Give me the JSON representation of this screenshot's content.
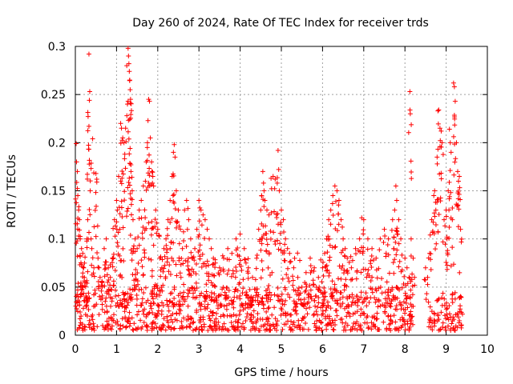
{
  "chart_data": {
    "type": "scatter",
    "title": "Day 260 of 2024, Rate Of TEC Index for receiver trds",
    "xlabel": "GPS time / hours",
    "ylabel": "ROTI / TECUs",
    "xlim": [
      0,
      10
    ],
    "ylim": [
      0,
      0.3
    ],
    "x_ticks": [
      0,
      1,
      2,
      3,
      4,
      5,
      6,
      7,
      8,
      9,
      10
    ],
    "x_tick_labels": [
      "0",
      "1",
      "2",
      "3",
      "4",
      "5",
      "6",
      "7",
      "8",
      "9",
      "10"
    ],
    "y_ticks": [
      0,
      0.05,
      0.1,
      0.15,
      0.2,
      0.25,
      0.3
    ],
    "y_tick_labels": [
      "0",
      "0.05",
      "0.1",
      "0.15",
      "0.2",
      "0.25",
      "0.3"
    ],
    "grid": true,
    "marker": "plus",
    "series": [
      {
        "name": "ROTI",
        "color": "#ff0000",
        "points": [
          [
            0.02,
            0.199
          ],
          [
            0.03,
            0.18
          ],
          [
            0.05,
            0.17
          ],
          [
            0.06,
            0.145
          ],
          [
            0.08,
            0.13
          ],
          [
            0.1,
            0.12
          ],
          [
            0.12,
            0.1
          ],
          [
            0.15,
            0.09
          ],
          [
            0.18,
            0.085
          ],
          [
            0.2,
            0.07
          ],
          [
            0.22,
            0.06
          ],
          [
            0.25,
            0.055
          ],
          [
            0.28,
            0.1
          ],
          [
            0.3,
            0.12
          ],
          [
            0.33,
            0.292
          ],
          [
            0.35,
            0.253
          ],
          [
            0.34,
            0.244
          ],
          [
            0.33,
            0.217
          ],
          [
            0.36,
            0.15
          ],
          [
            0.4,
            0.09
          ],
          [
            0.42,
            0.204
          ],
          [
            0.45,
            0.07
          ],
          [
            0.5,
            0.168
          ],
          [
            0.52,
            0.162
          ],
          [
            0.55,
            0.08
          ],
          [
            0.6,
            0.06
          ],
          [
            0.65,
            0.05
          ],
          [
            0.7,
            0.09
          ],
          [
            0.75,
            0.1
          ],
          [
            0.8,
            0.07
          ],
          [
            0.85,
            0.06
          ],
          [
            0.9,
            0.08
          ],
          [
            0.95,
            0.12
          ],
          [
            1.0,
            0.14
          ],
          [
            1.02,
            0.13
          ],
          [
            1.05,
            0.165
          ],
          [
            1.08,
            0.11
          ],
          [
            1.1,
            0.22
          ],
          [
            1.12,
            0.215
          ],
          [
            1.15,
            0.205
          ],
          [
            1.18,
            0.2
          ],
          [
            1.2,
            0.188
          ],
          [
            1.22,
            0.215
          ],
          [
            1.25,
            0.228
          ],
          [
            1.28,
            0.298
          ],
          [
            1.29,
            0.29
          ],
          [
            1.3,
            0.282
          ],
          [
            1.31,
            0.274
          ],
          [
            1.32,
            0.265
          ],
          [
            1.33,
            0.255
          ],
          [
            1.34,
            0.245
          ],
          [
            1.35,
            0.17
          ],
          [
            1.38,
            0.15
          ],
          [
            1.4,
            0.12
          ],
          [
            1.45,
            0.1
          ],
          [
            1.5,
            0.09
          ],
          [
            1.55,
            0.13
          ],
          [
            1.6,
            0.14
          ],
          [
            1.65,
            0.155
          ],
          [
            1.7,
            0.16
          ],
          [
            1.72,
            0.18
          ],
          [
            1.75,
            0.2
          ],
          [
            1.78,
            0.245
          ],
          [
            1.8,
            0.243
          ],
          [
            1.82,
            0.205
          ],
          [
            1.85,
            0.18
          ],
          [
            1.88,
            0.165
          ],
          [
            1.9,
            0.155
          ],
          [
            1.95,
            0.13
          ],
          [
            2.0,
            0.11
          ],
          [
            2.05,
            0.08
          ],
          [
            2.1,
            0.07
          ],
          [
            2.15,
            0.09
          ],
          [
            2.2,
            0.1
          ],
          [
            2.25,
            0.12
          ],
          [
            2.3,
            0.14
          ],
          [
            2.35,
            0.165
          ],
          [
            2.38,
            0.19
          ],
          [
            2.4,
            0.198
          ],
          [
            2.42,
            0.185
          ],
          [
            2.45,
            0.15
          ],
          [
            2.5,
            0.13
          ],
          [
            2.55,
            0.11
          ],
          [
            2.6,
            0.09
          ],
          [
            2.65,
            0.13
          ],
          [
            2.7,
            0.14
          ],
          [
            2.75,
            0.12
          ],
          [
            2.8,
            0.1
          ],
          [
            2.85,
            0.08
          ],
          [
            2.9,
            0.09
          ],
          [
            2.95,
            0.11
          ],
          [
            3.0,
            0.14
          ],
          [
            3.05,
            0.13
          ],
          [
            3.1,
            0.125
          ],
          [
            3.15,
            0.12
          ],
          [
            3.2,
            0.11
          ],
          [
            3.25,
            0.1
          ],
          [
            3.3,
            0.09
          ],
          [
            3.35,
            0.08
          ],
          [
            3.4,
            0.075
          ],
          [
            3.5,
            0.07
          ],
          [
            3.6,
            0.08
          ],
          [
            3.7,
            0.09
          ],
          [
            3.8,
            0.085
          ],
          [
            3.9,
            0.1
          ],
          [
            4.0,
            0.105
          ],
          [
            4.1,
            0.09
          ],
          [
            4.2,
            0.07
          ],
          [
            4.3,
            0.06
          ],
          [
            4.4,
            0.08
          ],
          [
            4.45,
            0.11
          ],
          [
            4.5,
            0.13
          ],
          [
            4.52,
            0.145
          ],
          [
            4.55,
            0.17
          ],
          [
            4.58,
            0.15
          ],
          [
            4.6,
            0.14
          ],
          [
            4.65,
            0.13
          ],
          [
            4.7,
            0.125
          ],
          [
            4.75,
            0.163
          ],
          [
            4.8,
            0.165
          ],
          [
            4.85,
            0.162
          ],
          [
            4.9,
            0.158
          ],
          [
            4.92,
            0.192
          ],
          [
            4.95,
            0.15
          ],
          [
            5.0,
            0.13
          ],
          [
            5.05,
            0.12
          ],
          [
            5.1,
            0.1
          ],
          [
            5.15,
            0.09
          ],
          [
            5.2,
            0.085
          ],
          [
            5.3,
            0.07
          ],
          [
            5.4,
            0.06
          ],
          [
            5.5,
            0.05
          ],
          [
            5.6,
            0.065
          ],
          [
            5.7,
            0.08
          ],
          [
            5.8,
            0.07
          ],
          [
            5.9,
            0.06
          ],
          [
            6.0,
            0.07
          ],
          [
            6.05,
            0.085
          ],
          [
            6.1,
            0.1
          ],
          [
            6.15,
            0.12
          ],
          [
            6.2,
            0.13
          ],
          [
            6.25,
            0.145
          ],
          [
            6.3,
            0.155
          ],
          [
            6.35,
            0.15
          ],
          [
            6.4,
            0.14
          ],
          [
            6.45,
            0.12
          ],
          [
            6.5,
            0.1
          ],
          [
            6.55,
            0.09
          ],
          [
            6.6,
            0.08
          ],
          [
            6.7,
            0.07
          ],
          [
            6.8,
            0.09
          ],
          [
            6.9,
            0.1
          ],
          [
            6.95,
            0.122
          ],
          [
            7.0,
            0.12
          ],
          [
            7.1,
            0.1
          ],
          [
            7.2,
            0.09
          ],
          [
            7.3,
            0.08
          ],
          [
            7.4,
            0.1
          ],
          [
            7.5,
            0.11
          ],
          [
            7.6,
            0.1
          ],
          [
            7.7,
            0.12
          ],
          [
            7.75,
            0.13
          ],
          [
            7.78,
            0.155
          ],
          [
            7.8,
            0.14
          ],
          [
            7.85,
            0.12
          ],
          [
            7.9,
            0.1
          ],
          [
            8.0,
            0.08
          ],
          [
            8.05,
            0.07
          ],
          [
            8.1,
            0.06
          ],
          [
            8.12,
            0.253
          ],
          [
            8.13,
            0.23
          ],
          [
            8.15,
            0.1
          ],
          [
            8.2,
            0.08
          ],
          [
            8.5,
            0.07
          ],
          [
            8.55,
            0.06
          ],
          [
            8.6,
            0.085
          ],
          [
            8.65,
            0.12
          ],
          [
            8.7,
            0.145
          ],
          [
            8.72,
            0.15
          ],
          [
            8.75,
            0.13
          ],
          [
            8.78,
            0.185
          ],
          [
            8.8,
            0.233
          ],
          [
            8.82,
            0.234
          ],
          [
            8.85,
            0.215
          ],
          [
            8.88,
            0.212
          ],
          [
            8.9,
            0.2
          ],
          [
            8.95,
            0.12
          ],
          [
            9.0,
            0.13
          ],
          [
            9.02,
            0.1
          ],
          [
            9.05,
            0.15
          ],
          [
            9.08,
            0.214
          ],
          [
            9.1,
            0.2
          ],
          [
            9.12,
            0.19
          ],
          [
            9.15,
            0.12
          ],
          [
            9.18,
            0.262
          ],
          [
            9.2,
            0.258
          ],
          [
            9.22,
            0.243
          ],
          [
            9.25,
            0.2
          ],
          [
            9.28,
            0.17
          ],
          [
            9.3,
            0.16
          ],
          [
            9.32,
            0.165
          ],
          [
            9.35,
            0.11
          ]
        ],
        "bands": [
          {
            "x_start": 0.0,
            "x_end": 8.2,
            "y_min": 0.005,
            "y_max": 0.05,
            "density": 14
          },
          {
            "x_start": 0.0,
            "x_end": 8.2,
            "y_min": 0.03,
            "y_max": 0.09,
            "density": 5
          },
          {
            "x_start": 8.55,
            "x_end": 9.4,
            "y_min": 0.005,
            "y_max": 0.045,
            "density": 14
          }
        ]
      }
    ]
  }
}
